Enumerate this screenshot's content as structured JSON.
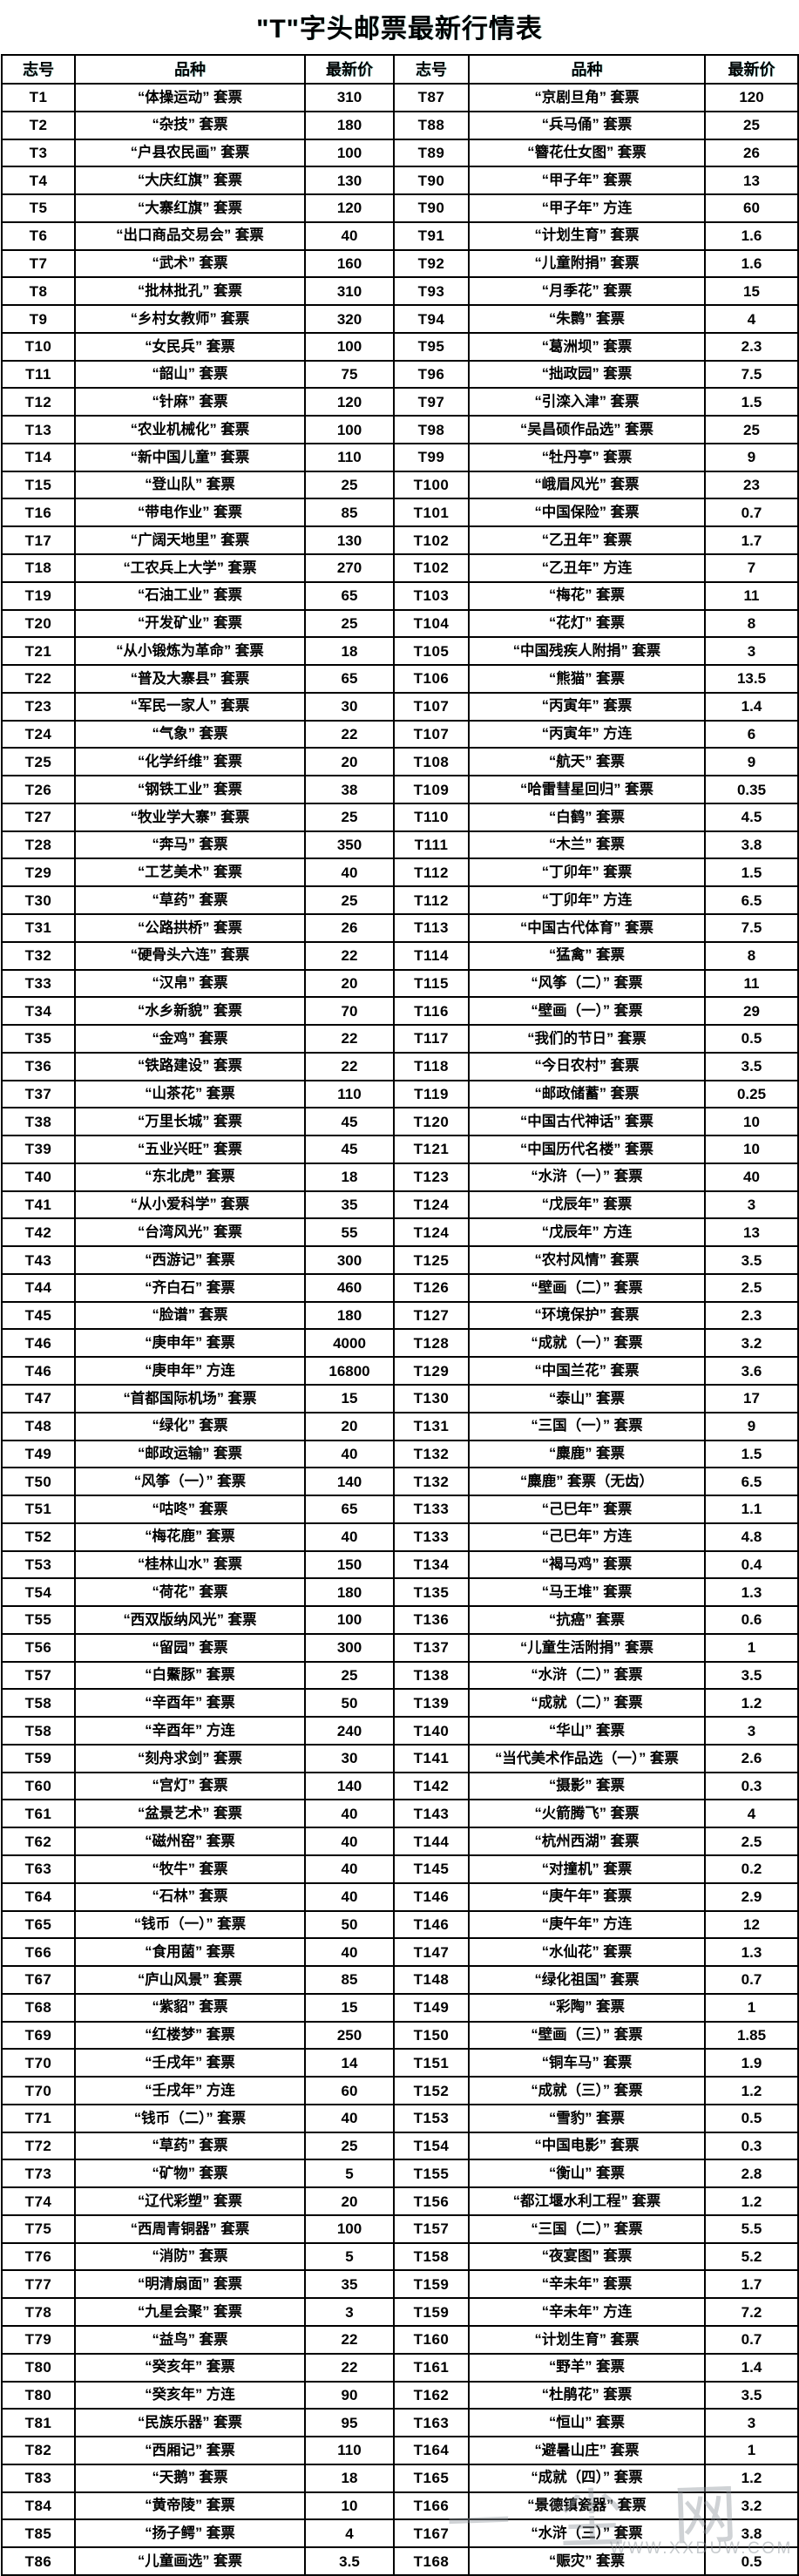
{
  "title": "\"T\"字头邮票最新行情表",
  "table": {
    "headers": [
      "志号",
      "品种",
      "最新价",
      "志号",
      "品种",
      "最新价"
    ],
    "rows": [
      [
        "T1",
        "“体操运动” 套票",
        "310",
        "T87",
        "“京剧旦角” 套票",
        "120"
      ],
      [
        "T2",
        "“杂技” 套票",
        "180",
        "T88",
        "“兵马俑” 套票",
        "25"
      ],
      [
        "T3",
        "“户县农民画” 套票",
        "100",
        "T89",
        "“簪花仕女图” 套票",
        "26"
      ],
      [
        "T4",
        "“大庆红旗” 套票",
        "130",
        "T90",
        "“甲子年” 套票",
        "13"
      ],
      [
        "T5",
        "“大寨红旗” 套票",
        "120",
        "T90",
        "“甲子年” 方连",
        "60"
      ],
      [
        "T6",
        "“出口商品交易会” 套票",
        "40",
        "T91",
        "“计划生育” 套票",
        "1.6"
      ],
      [
        "T7",
        "“武术” 套票",
        "160",
        "T92",
        "“儿童附捐” 套票",
        "1.6"
      ],
      [
        "T8",
        "“批林批孔” 套票",
        "310",
        "T93",
        "“月季花” 套票",
        "15"
      ],
      [
        "T9",
        "“乡村女教师” 套票",
        "320",
        "T94",
        "“朱鹮” 套票",
        "4"
      ],
      [
        "T10",
        "“女民兵” 套票",
        "100",
        "T95",
        "“葛洲坝” 套票",
        "2.3"
      ],
      [
        "T11",
        "“韶山” 套票",
        "75",
        "T96",
        "“拙政园” 套票",
        "7.5"
      ],
      [
        "T12",
        "“针麻” 套票",
        "120",
        "T97",
        "“引滦入津” 套票",
        "1.5"
      ],
      [
        "T13",
        "“农业机械化” 套票",
        "100",
        "T98",
        "“吴昌硕作品选” 套票",
        "25"
      ],
      [
        "T14",
        "“新中国儿童” 套票",
        "110",
        "T99",
        "“牡丹亭” 套票",
        "9"
      ],
      [
        "T15",
        "“登山队” 套票",
        "25",
        "T100",
        "“峨眉风光” 套票",
        "23"
      ],
      [
        "T16",
        "“带电作业” 套票",
        "85",
        "T101",
        "“中国保险” 套票",
        "0.7"
      ],
      [
        "T17",
        "“广阔天地里” 套票",
        "130",
        "T102",
        "“乙丑年” 套票",
        "1.7"
      ],
      [
        "T18",
        "“工农兵上大学” 套票",
        "270",
        "T102",
        "“乙丑年” 方连",
        "7"
      ],
      [
        "T19",
        "“石油工业” 套票",
        "65",
        "T103",
        "“梅花” 套票",
        "11"
      ],
      [
        "T20",
        "“开发矿业” 套票",
        "25",
        "T104",
        "“花灯” 套票",
        "8"
      ],
      [
        "T21",
        "“从小锻炼为革命” 套票",
        "18",
        "T105",
        "“中国残疾人附捐” 套票",
        "3"
      ],
      [
        "T22",
        "“普及大寨县” 套票",
        "65",
        "T106",
        "“熊猫” 套票",
        "13.5"
      ],
      [
        "T23",
        "“军民一家人” 套票",
        "30",
        "T107",
        "“丙寅年” 套票",
        "1.4"
      ],
      [
        "T24",
        "“气象” 套票",
        "22",
        "T107",
        "“丙寅年” 方连",
        "6"
      ],
      [
        "T25",
        "“化学纤维” 套票",
        "20",
        "T108",
        "“航天” 套票",
        "9"
      ],
      [
        "T26",
        "“钢铁工业” 套票",
        "38",
        "T109",
        "“哈雷彗星回归” 套票",
        "0.35"
      ],
      [
        "T27",
        "“牧业学大寨” 套票",
        "25",
        "T110",
        "“白鹤” 套票",
        "4.5"
      ],
      [
        "T28",
        "“奔马” 套票",
        "350",
        "T111",
        "“木兰” 套票",
        "3.8"
      ],
      [
        "T29",
        "“工艺美术” 套票",
        "40",
        "T112",
        "“丁卯年” 套票",
        "1.5"
      ],
      [
        "T30",
        "“草药” 套票",
        "25",
        "T112",
        "“丁卯年” 方连",
        "6.5"
      ],
      [
        "T31",
        "“公路拱桥” 套票",
        "26",
        "T113",
        "“中国古代体育” 套票",
        "7.5"
      ],
      [
        "T32",
        "“硬骨头六连” 套票",
        "22",
        "T114",
        "“猛禽” 套票",
        "8"
      ],
      [
        "T33",
        "“汉帛” 套票",
        "20",
        "T115",
        "“风筝（二）” 套票",
        "11"
      ],
      [
        "T34",
        "“水乡新貌” 套票",
        "70",
        "T116",
        "“壁画（一）” 套票",
        "29"
      ],
      [
        "T35",
        "“金鸡” 套票",
        "22",
        "T117",
        "“我们的节日” 套票",
        "0.5"
      ],
      [
        "T36",
        "“铁路建设” 套票",
        "22",
        "T118",
        "“今日农村” 套票",
        "3.5"
      ],
      [
        "T37",
        "“山茶花” 套票",
        "110",
        "T119",
        "“邮政储蓄” 套票",
        "0.25"
      ],
      [
        "T38",
        "“万里长城” 套票",
        "45",
        "T120",
        "“中国古代神话” 套票",
        "10"
      ],
      [
        "T39",
        "“五业兴旺” 套票",
        "45",
        "T121",
        "“中国历代名楼” 套票",
        "10"
      ],
      [
        "T40",
        "“东北虎” 套票",
        "18",
        "T123",
        "“水浒（一）” 套票",
        "40"
      ],
      [
        "T41",
        "“从小爱科学” 套票",
        "35",
        "T124",
        "“戊辰年” 套票",
        "3"
      ],
      [
        "T42",
        "“台湾风光” 套票",
        "55",
        "T124",
        "“戊辰年” 方连",
        "13"
      ],
      [
        "T43",
        "“西游记” 套票",
        "300",
        "T125",
        "“农村风情” 套票",
        "3.5"
      ],
      [
        "T44",
        "“齐白石” 套票",
        "460",
        "T126",
        "“壁画（二）” 套票",
        "2.5"
      ],
      [
        "T45",
        "“脸谱” 套票",
        "180",
        "T127",
        "“环境保护” 套票",
        "2.3"
      ],
      [
        "T46",
        "“庚申年” 套票",
        "4000",
        "T128",
        "“成就（一）” 套票",
        "3.2"
      ],
      [
        "T46",
        "“庚申年” 方连",
        "16800",
        "T129",
        "“中国兰花” 套票",
        "3.6"
      ],
      [
        "T47",
        "“首都国际机场” 套票",
        "15",
        "T130",
        "“泰山” 套票",
        "17"
      ],
      [
        "T48",
        "“绿化” 套票",
        "20",
        "T131",
        "“三国（一）” 套票",
        "9"
      ],
      [
        "T49",
        "“邮政运输” 套票",
        "40",
        "T132",
        "“麋鹿” 套票",
        "1.5"
      ],
      [
        "T50",
        "“风筝（一）” 套票",
        "140",
        "T132",
        "“麋鹿” 套票（无齿）",
        "6.5"
      ],
      [
        "T51",
        "“咕咚” 套票",
        "65",
        "T133",
        "“己巳年” 套票",
        "1.1"
      ],
      [
        "T52",
        "“梅花鹿” 套票",
        "40",
        "T133",
        "“己巳年” 方连",
        "4.8"
      ],
      [
        "T53",
        "“桂林山水” 套票",
        "150",
        "T134",
        "“褐马鸡” 套票",
        "0.4"
      ],
      [
        "T54",
        "“荷花” 套票",
        "180",
        "T135",
        "“马王堆” 套票",
        "1.3"
      ],
      [
        "T55",
        "“西双版纳风光” 套票",
        "100",
        "T136",
        "“抗癌” 套票",
        "0.6"
      ],
      [
        "T56",
        "“留园” 套票",
        "300",
        "T137",
        "“儿童生活附捐” 套票",
        "1"
      ],
      [
        "T57",
        "“白鱀豚” 套票",
        "25",
        "T138",
        "“水浒（二）” 套票",
        "3.5"
      ],
      [
        "T58",
        "“辛酉年” 套票",
        "50",
        "T139",
        "“成就（二）” 套票",
        "1.2"
      ],
      [
        "T58",
        "“辛酉年” 方连",
        "240",
        "T140",
        "“华山” 套票",
        "3"
      ],
      [
        "T59",
        "“刻舟求剑” 套票",
        "30",
        "T141",
        "“当代美术作品选（一）” 套票",
        "2.6"
      ],
      [
        "T60",
        "“宫灯” 套票",
        "140",
        "T142",
        "“摄影” 套票",
        "0.3"
      ],
      [
        "T61",
        "“盆景艺术” 套票",
        "40",
        "T143",
        "“火箭腾飞” 套票",
        "4"
      ],
      [
        "T62",
        "“磁州窑” 套票",
        "40",
        "T144",
        "“杭州西湖” 套票",
        "2.5"
      ],
      [
        "T63",
        "“牧牛” 套票",
        "40",
        "T145",
        "“对撞机” 套票",
        "0.2"
      ],
      [
        "T64",
        "“石林” 套票",
        "40",
        "T146",
        "“庚午年” 套票",
        "2.9"
      ],
      [
        "T65",
        "“钱币（一）” 套票",
        "50",
        "T146",
        "“庚午年” 方连",
        "12"
      ],
      [
        "T66",
        "“食用菌” 套票",
        "40",
        "T147",
        "“水仙花” 套票",
        "1.3"
      ],
      [
        "T67",
        "“庐山风景” 套票",
        "85",
        "T148",
        "“绿化祖国” 套票",
        "0.7"
      ],
      [
        "T68",
        "“紫貂” 套票",
        "15",
        "T149",
        "“彩陶” 套票",
        "1"
      ],
      [
        "T69",
        "“红楼梦” 套票",
        "250",
        "T150",
        "“壁画（三）” 套票",
        "1.85"
      ],
      [
        "T70",
        "“壬戌年” 套票",
        "14",
        "T151",
        "“铜车马” 套票",
        "1.9"
      ],
      [
        "T70",
        "“壬戌年” 方连",
        "60",
        "T152",
        "“成就（三）” 套票",
        "1.2"
      ],
      [
        "T71",
        "“钱币（二）” 套票",
        "40",
        "T153",
        "“雪豹” 套票",
        "0.5"
      ],
      [
        "T72",
        "“草药” 套票",
        "25",
        "T154",
        "“中国电影” 套票",
        "0.3"
      ],
      [
        "T73",
        "“矿物” 套票",
        "5",
        "T155",
        "“衡山” 套票",
        "2.8"
      ],
      [
        "T74",
        "“辽代彩塑” 套票",
        "20",
        "T156",
        "“都江堰水利工程” 套票",
        "1.2"
      ],
      [
        "T75",
        "“西周青铜器” 套票",
        "100",
        "T157",
        "“三国（二）” 套票",
        "5.5"
      ],
      [
        "T76",
        "“消防” 套票",
        "5",
        "T158",
        "“夜宴图” 套票",
        "5.2"
      ],
      [
        "T77",
        "“明清扇面” 套票",
        "35",
        "T159",
        "“辛未年” 套票",
        "1.7"
      ],
      [
        "T78",
        "“九星会聚” 套票",
        "3",
        "T159",
        "“辛未年” 方连",
        "7.2"
      ],
      [
        "T79",
        "“益鸟” 套票",
        "22",
        "T160",
        "“计划生育” 套票",
        "0.7"
      ],
      [
        "T80",
        "“癸亥年” 套票",
        "22",
        "T161",
        "“野羊” 套票",
        "1.4"
      ],
      [
        "T80",
        "“癸亥年” 方连",
        "90",
        "T162",
        "“杜鹃花” 套票",
        "3.5"
      ],
      [
        "T81",
        "“民族乐器” 套票",
        "95",
        "T163",
        "“恒山” 套票",
        "3"
      ],
      [
        "T82",
        "“西厢记” 套票",
        "110",
        "T164",
        "“避暑山庄” 套票",
        "1"
      ],
      [
        "T83",
        "“天鹅” 套票",
        "18",
        "T165",
        "“成就（四）” 套票",
        "1.2"
      ],
      [
        "T84",
        "“黄帝陵” 套票",
        "10",
        "T166",
        "“景德镇瓷器” 套票",
        "3.2"
      ],
      [
        "T85",
        "“扬子鳄” 套票",
        "4",
        "T167",
        "“水浒（三）” 套票",
        "3.8"
      ],
      [
        "T86",
        "“儿童画选” 套票",
        "3.5",
        "T168",
        "“赈灾” 套票",
        "0.5"
      ]
    ]
  },
  "watermark": {
    "chars": "一尘网",
    "url": "WWW.XXDUW.COM"
  }
}
